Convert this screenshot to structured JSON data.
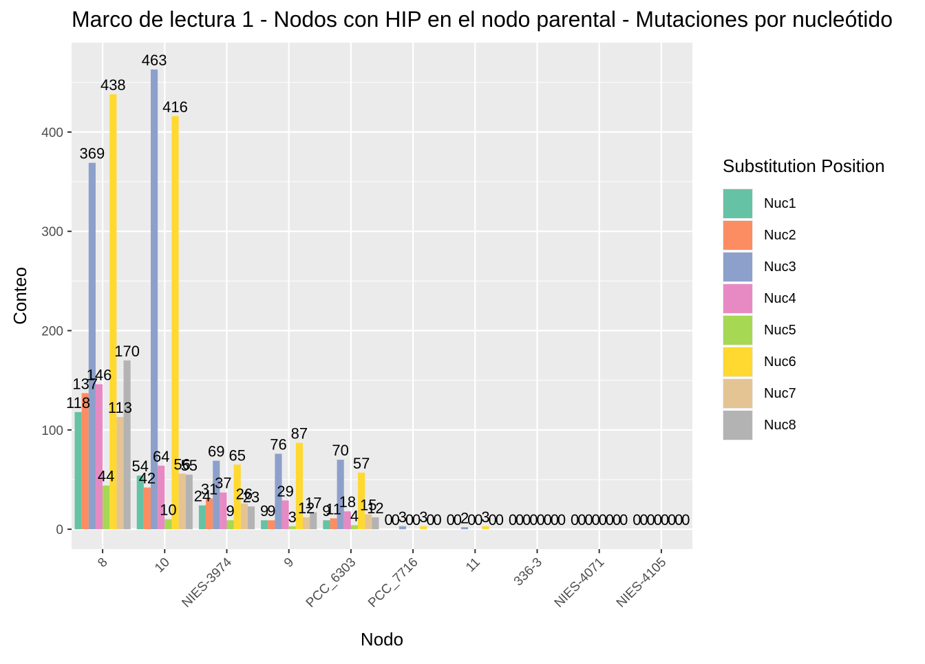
{
  "chart_data": {
    "type": "bar",
    "title": "Marco de lectura 1 - Nodos con HIP en el nodo parental - Mutaciones por nucleótido",
    "xlabel": "Nodo",
    "ylabel": "Conteo",
    "ylim": [
      -20,
      490
    ],
    "yticks": [
      0,
      100,
      200,
      300,
      400
    ],
    "grid": true,
    "legend_title": "Substitution Position",
    "legend_position": "right",
    "categories": [
      "8",
      "10",
      "NIES-3974",
      "9",
      "PCC_6303",
      "PCC_7716",
      "11",
      "336-3",
      "NIES-4071",
      "NIES-4105"
    ],
    "series": [
      {
        "name": "Nuc1",
        "color": "#66c2a5",
        "values": [
          118,
          54,
          24,
          9,
          9,
          0,
          0,
          0,
          0,
          0
        ]
      },
      {
        "name": "Nuc2",
        "color": "#fc8d62",
        "values": [
          137,
          42,
          31,
          9,
          11,
          0,
          0,
          0,
          0,
          0
        ]
      },
      {
        "name": "Nuc3",
        "color": "#8da0cb",
        "values": [
          369,
          463,
          69,
          76,
          70,
          3,
          2,
          0,
          0,
          0
        ]
      },
      {
        "name": "Nuc4",
        "color": "#e78ac3",
        "values": [
          146,
          64,
          37,
          29,
          18,
          0,
          0,
          0,
          0,
          0
        ]
      },
      {
        "name": "Nuc5",
        "color": "#a6d854",
        "values": [
          44,
          10,
          9,
          3,
          4,
          0,
          0,
          0,
          0,
          0
        ]
      },
      {
        "name": "Nuc6",
        "color": "#ffd92f",
        "values": [
          438,
          416,
          65,
          87,
          57,
          3,
          3,
          0,
          0,
          0
        ]
      },
      {
        "name": "Nuc7",
        "color": "#e5c494",
        "values": [
          113,
          56,
          26,
          12,
          15,
          0,
          0,
          0,
          0,
          0
        ]
      },
      {
        "name": "Nuc8",
        "color": "#b3b3b3",
        "values": [
          170,
          55,
          23,
          17,
          12,
          0,
          0,
          0,
          0,
          0
        ]
      }
    ]
  }
}
